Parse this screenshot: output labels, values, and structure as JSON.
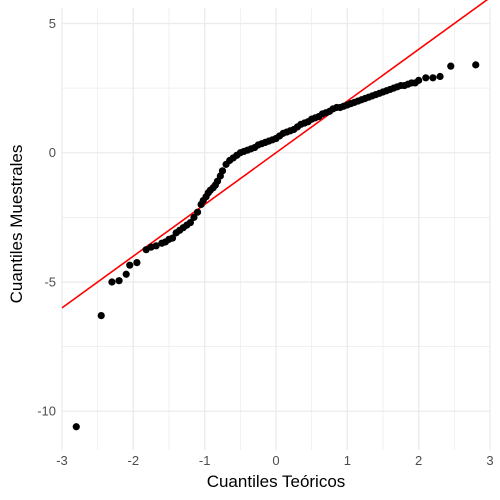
{
  "chart_data": {
    "type": "scatter",
    "title": "",
    "xlabel": "Cuantiles Teóricos",
    "ylabel": "Cuantiles Muestrales",
    "xlim": [
      -3.0,
      3.0
    ],
    "ylim": [
      -11.5,
      5.6
    ],
    "x_ticks": [
      -3,
      -2,
      -1,
      0,
      1,
      2,
      3
    ],
    "y_ticks": [
      -10,
      -5,
      0,
      5
    ],
    "grid": true,
    "legend": "none",
    "reference_line": {
      "intercept": 0.0,
      "slope": 2.0,
      "color": "#ff0000"
    },
    "points_color": "#000000",
    "grid_color": "#ebebeb",
    "series": [
      {
        "x": [
          -2.8,
          -2.45,
          -2.3,
          -2.2,
          -2.1,
          -2.05,
          -1.95,
          -1.82,
          -1.75,
          -1.68,
          -1.6,
          -1.55,
          -1.5,
          -1.45,
          -1.4,
          -1.35,
          -1.3,
          -1.25,
          -1.2,
          -1.15,
          -1.1,
          -1.05,
          -1.02,
          -0.98,
          -0.95,
          -0.92,
          -0.88,
          -0.85,
          -0.82,
          -0.78,
          -0.75,
          -0.7,
          -0.65,
          -0.6,
          -0.55,
          -0.5,
          -0.45,
          -0.4,
          -0.35,
          -0.3,
          -0.25,
          -0.2,
          -0.15,
          -0.1,
          -0.05,
          0.0,
          0.05,
          0.1,
          0.15,
          0.2,
          0.25,
          0.3,
          0.35,
          0.4,
          0.45,
          0.5,
          0.55,
          0.6,
          0.65,
          0.7,
          0.75,
          0.8,
          0.85,
          0.9,
          0.95,
          1.0,
          1.05,
          1.1,
          1.15,
          1.2,
          1.25,
          1.3,
          1.35,
          1.4,
          1.45,
          1.5,
          1.55,
          1.6,
          1.65,
          1.7,
          1.75,
          1.8,
          1.85,
          1.9,
          1.95,
          2.0,
          2.1,
          2.2,
          2.3,
          2.45,
          2.8
        ],
        "y": [
          -10.6,
          -6.3,
          -5.0,
          -4.95,
          -4.7,
          -4.35,
          -4.25,
          -3.75,
          -3.65,
          -3.6,
          -3.5,
          -3.45,
          -3.35,
          -3.3,
          -3.1,
          -3.0,
          -2.9,
          -2.8,
          -2.7,
          -2.5,
          -2.3,
          -2.0,
          -1.85,
          -1.7,
          -1.55,
          -1.45,
          -1.35,
          -1.25,
          -1.1,
          -0.9,
          -0.7,
          -0.45,
          -0.3,
          -0.2,
          -0.1,
          0.0,
          0.05,
          0.1,
          0.15,
          0.2,
          0.3,
          0.35,
          0.4,
          0.45,
          0.5,
          0.55,
          0.65,
          0.75,
          0.8,
          0.85,
          0.9,
          1.0,
          1.1,
          1.15,
          1.2,
          1.3,
          1.35,
          1.4,
          1.5,
          1.55,
          1.6,
          1.7,
          1.75,
          1.75,
          1.8,
          1.85,
          1.9,
          1.95,
          2.0,
          2.05,
          2.1,
          2.15,
          2.2,
          2.25,
          2.3,
          2.35,
          2.4,
          2.45,
          2.5,
          2.55,
          2.6,
          2.6,
          2.65,
          2.7,
          2.7,
          2.8,
          2.9,
          2.9,
          2.95,
          3.35,
          3.4
        ]
      }
    ]
  }
}
